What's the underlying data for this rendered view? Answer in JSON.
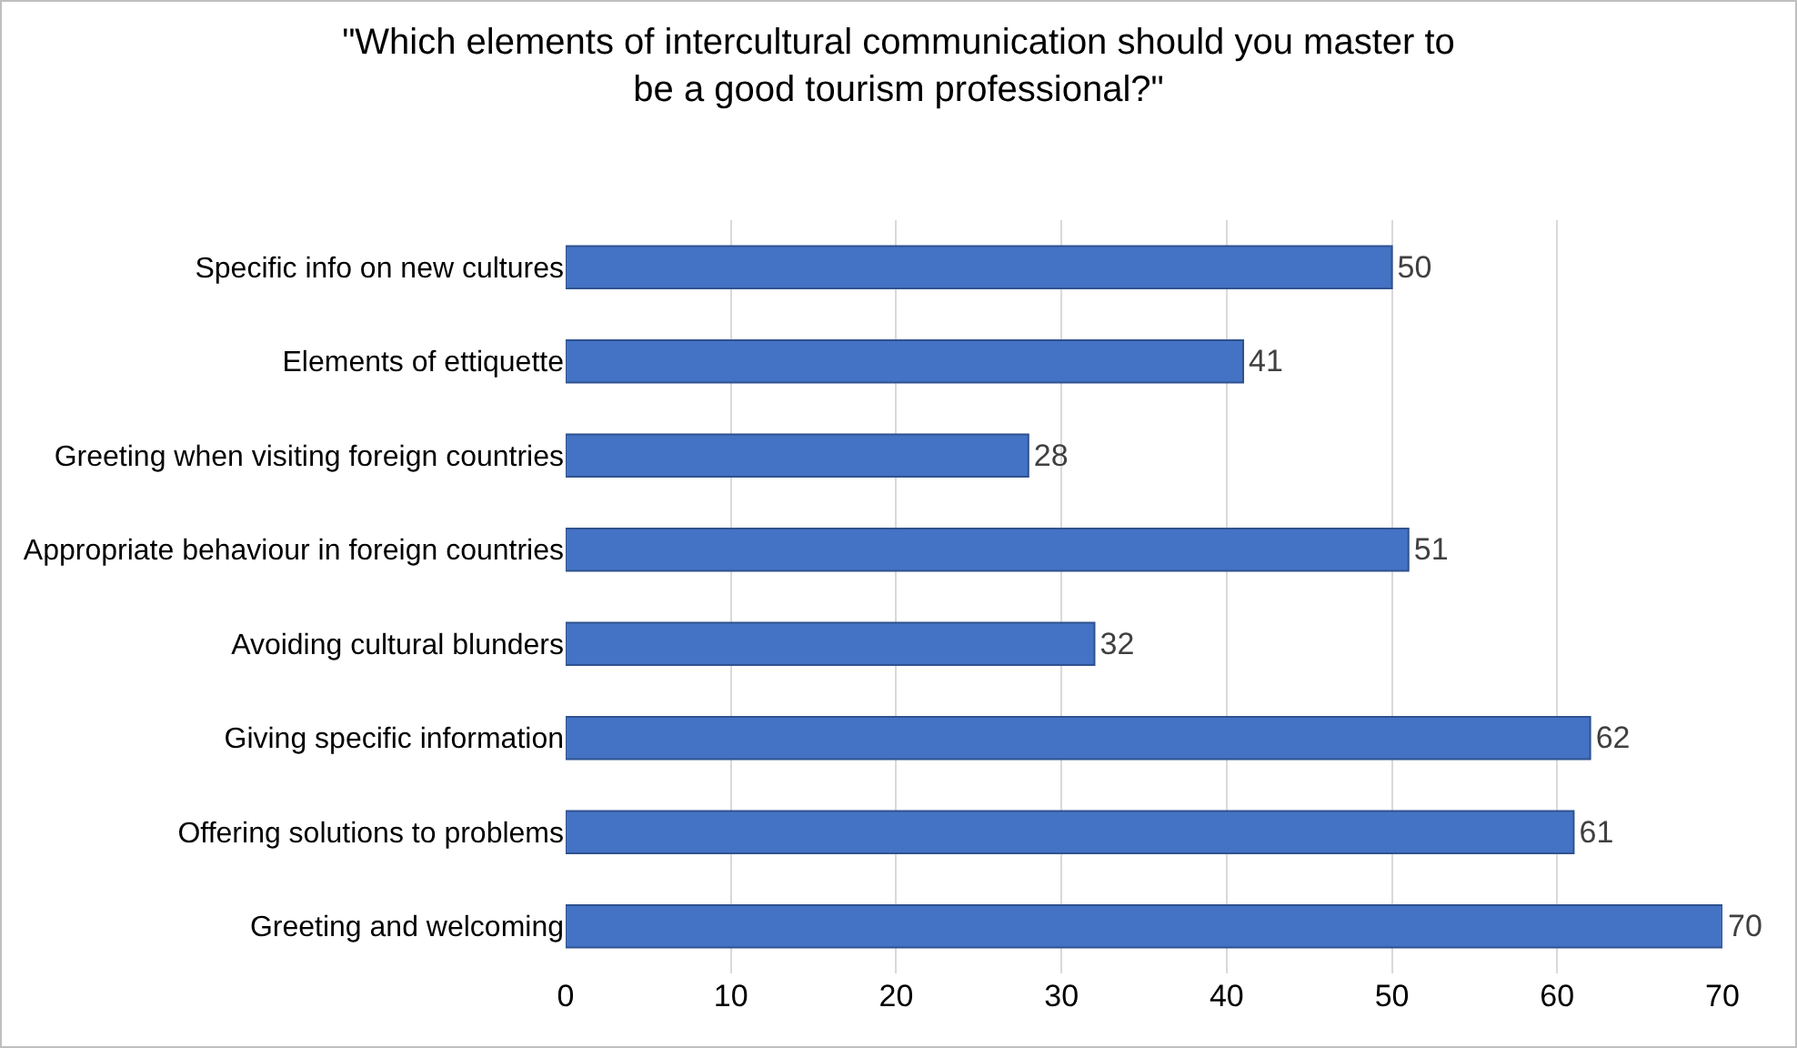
{
  "chart_data": {
    "type": "bar",
    "orientation": "horizontal",
    "title": "\"Which elements of intercultural communication should you master to\nbe a good tourism professional?\"",
    "categories": [
      "Specific info on new cultures",
      "Elements of ettiquette",
      "Greeting when visiting foreign countries",
      "Appropriate behaviour in foreign countries",
      "Avoiding cultural blunders",
      "Giving specific information",
      "Offering solutions to problems",
      "Greeting and welcoming"
    ],
    "values": [
      50,
      41,
      28,
      51,
      32,
      62,
      61,
      70
    ],
    "color": "#4472c4",
    "xlim": [
      0,
      70
    ],
    "xticks": [
      0,
      10,
      20,
      30,
      40,
      50,
      60,
      70
    ],
    "grid": "x",
    "data_labels": true,
    "legend": false
  }
}
